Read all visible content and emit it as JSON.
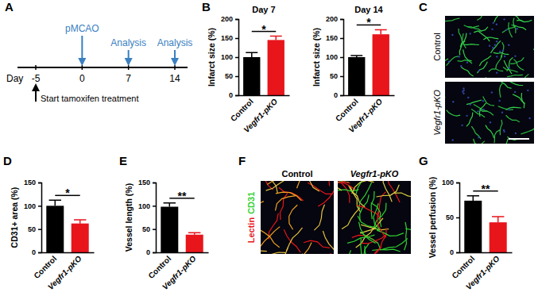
{
  "panel_labels": [
    "A",
    "B",
    "C",
    "D",
    "E",
    "F",
    "G"
  ],
  "timeline": {
    "label": "Day",
    "ticks": [
      -5,
      0,
      7,
      14
    ],
    "events": [
      {
        "day": 0,
        "label": "pMCAO"
      },
      {
        "day": 7,
        "label": "Analysis"
      },
      {
        "day": 14,
        "label": "Analysis"
      }
    ],
    "start": {
      "day": -5,
      "label": "Start tamoxifen treatment"
    }
  },
  "images": [
    {
      "labels": [
        "Control",
        "Vegfr1-pKO"
      ]
    },
    {
      "labels": [
        "Control",
        "Vegfr1-pKO"
      ],
      "stains": [
        {
          "label": "Lectin",
          "color": "#e8151b"
        },
        {
          "label": "CD31",
          "color": "#2fd12f"
        }
      ]
    }
  ],
  "chart_data": [
    {
      "type": "bar",
      "title": "Day 7",
      "ylabel": "Infarct size (%)",
      "categories": [
        "Control",
        "Vegfr1-pKO"
      ],
      "values": [
        100,
        145
      ],
      "errors": [
        12,
        10
      ],
      "colors": [
        "#000000",
        "#e8151b"
      ],
      "ylim": [
        0,
        200
      ],
      "yticks": [
        0,
        50,
        100,
        150,
        200
      ],
      "annotations": [
        "*"
      ]
    },
    {
      "type": "bar",
      "title": "Day 14",
      "ylabel": "Infarct size (%)",
      "categories": [
        "Control",
        "Vegfr1-pKO"
      ],
      "values": [
        100,
        160
      ],
      "errors": [
        4,
        12
      ],
      "colors": [
        "#000000",
        "#e8151b"
      ],
      "ylim": [
        0,
        200
      ],
      "yticks": [
        0,
        50,
        100,
        150,
        200
      ],
      "annotations": [
        "*"
      ]
    },
    {
      "type": "bar",
      "ylabel": "CD31+ area (%)",
      "categories": [
        "Control",
        "Vegfr1-pKO"
      ],
      "values": [
        100,
        62
      ],
      "errors": [
        12,
        8
      ],
      "colors": [
        "#000000",
        "#e8151b"
      ],
      "ylim": [
        0,
        150
      ],
      "yticks": [
        0,
        50,
        100,
        150
      ],
      "annotations": [
        "*"
      ]
    },
    {
      "type": "bar",
      "ylabel": "Vessel length (%)",
      "categories": [
        "Control",
        "Vegfr1-pKO"
      ],
      "values": [
        98,
        38
      ],
      "errors": [
        8,
        4
      ],
      "colors": [
        "#000000",
        "#e8151b"
      ],
      "ylim": [
        0,
        150
      ],
      "yticks": [
        0,
        50,
        100,
        150
      ],
      "annotations": [
        "**"
      ]
    },
    {
      "type": "bar",
      "ylabel": "Vessel perfusion (%)",
      "categories": [
        "Control",
        "Vegfr1-pKO"
      ],
      "values": [
        74,
        43
      ],
      "errors": [
        7,
        8
      ],
      "colors": [
        "#000000",
        "#e8151b"
      ],
      "ylim": [
        0,
        100
      ],
      "yticks": [
        0,
        50,
        100
      ],
      "annotations": [
        "**"
      ]
    }
  ]
}
